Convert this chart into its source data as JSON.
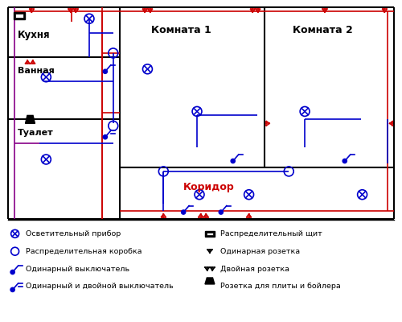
{
  "wall_color": "#000000",
  "red_wire": "#cc0000",
  "blue_wire": "#0000cc",
  "purple_wire": "#880088",
  "room_labels": {
    "kitchen": "Кухня",
    "bathroom": "Ванная",
    "toilet": "Туалет",
    "room1": "Комната 1",
    "room2": "Комната 2",
    "corridor": "Коридор"
  },
  "legend_left": [
    "Осветительный прибор",
    "Распределительная коробка",
    "Одинарный выключатель",
    "Одинарный и двойной выключатель"
  ],
  "legend_right": [
    "Распределительный щит",
    "Одинарная розетка",
    "Двойная розетка",
    "Розетка для плиты и бойлера"
  ],
  "figsize": [
    5.0,
    4.0
  ],
  "dpi": 100
}
